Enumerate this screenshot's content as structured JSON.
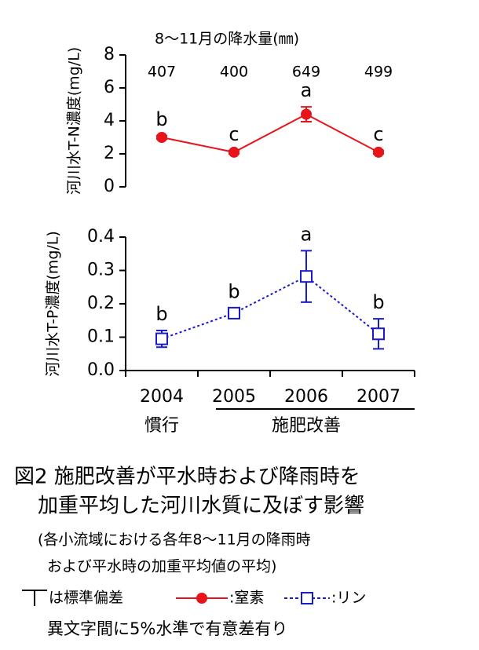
{
  "chart_data": [
    {
      "type": "line",
      "ylabel": "河川水T-N濃度(mg/L)",
      "ylim": [
        0,
        8
      ],
      "yticks": [
        0,
        2,
        4,
        6,
        8
      ],
      "rainfall": {
        "title": "8～11月の降水量(㎜)",
        "values": [
          407,
          400,
          649,
          499
        ]
      },
      "series": [
        {
          "name": ":窒素",
          "color": "#e8141c",
          "marker": "circle",
          "line_style": "solid",
          "values": [
            3.0,
            2.1,
            4.4,
            2.1
          ],
          "errors": [
            0.1,
            0.1,
            0.45,
            0.1
          ],
          "letters": [
            "b",
            "c",
            "a",
            "c"
          ]
        }
      ]
    },
    {
      "type": "line",
      "ylabel": "河川水T-P濃度(mg/L)",
      "ylim": [
        0,
        0.4
      ],
      "yticks": [
        {
          "value": 0,
          "label": "0.0"
        },
        0.1,
        0.2,
        0.3,
        0.4
      ],
      "categories": [
        "2004",
        "2005",
        "2006",
        "2007"
      ],
      "groups": [
        "慣行",
        "施肥改善"
      ],
      "series": [
        {
          "name": ":リン",
          "color": "#1a1acd",
          "marker": "square",
          "line_style": "dotted",
          "values": [
            0.095,
            0.172,
            0.282,
            0.11
          ],
          "errors": [
            0.025,
            0.015,
            0.077,
            0.045
          ],
          "letters": [
            "b",
            "b",
            "a",
            "b"
          ]
        }
      ]
    }
  ],
  "caption": {
    "lines": [
      "図2 施肥改善が平水時および降雨時を",
      "加重平均した河川水質に及ぼす影響",
      "(各小流域における各年8～11月の降雨時",
      "および平水時の加重平均値の平均)"
    ],
    "error_bar_legend": "は標準偏差",
    "note": "異文字間に5%水準で有意差有り"
  }
}
